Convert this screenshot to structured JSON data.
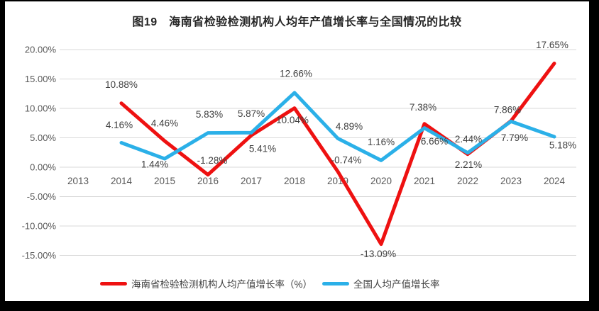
{
  "title": "图19　海南省检验检测机构人均年产值增长率与全国情况的比较",
  "colors": {
    "background_frame": "#000000",
    "panel": "#ffffff",
    "gridline": "#d9d9d9",
    "axis_text": "#595959",
    "data_label_text": "#404040",
    "title_text": "#262626"
  },
  "chart_data": {
    "type": "line",
    "title": "图19　海南省检验检测机构人均年产值增长率与全国情况的比较",
    "categories": [
      "2013",
      "2014",
      "2015",
      "2016",
      "2017",
      "2018",
      "2019",
      "2020",
      "2021",
      "2022",
      "2023",
      "2024"
    ],
    "xlabel": "",
    "ylabel": "",
    "ylim": [
      -15,
      20
    ],
    "yticks": [
      20,
      15,
      10,
      5,
      0,
      -5,
      -10,
      -15
    ],
    "ytick_labels": [
      "20.00%",
      "15.00%",
      "10.00%",
      "5.00%",
      "0.00%",
      "-5.00%",
      "-10.00%",
      "-15.00%"
    ],
    "grid": true,
    "legend_position": "bottom",
    "series": [
      {
        "name": "海南省检验检测机构人均产值增长率（%）",
        "color": "#ee1111",
        "points": [
          {
            "year": "2014",
            "value": 10.88,
            "label": "10.88%",
            "dx": 0,
            "dy": -26
          },
          {
            "year": "2015",
            "value": 4.46,
            "label": "4.46%",
            "dx": 0,
            "dy": -25
          },
          {
            "year": "2016",
            "value": -1.28,
            "label": "-1.28%",
            "dx": 6,
            "dy": -20
          },
          {
            "year": "2017",
            "value": 5.41,
            "label": "5.41%",
            "dx": 16,
            "dy": 19
          },
          {
            "year": "2018",
            "value": 10.04,
            "label": "10.04%",
            "dx": -3,
            "dy": 17
          },
          {
            "year": "2019",
            "value": -0.74,
            "label": "-0.74%",
            "dx": 12,
            "dy": -16
          },
          {
            "year": "2020",
            "value": -13.09,
            "label": "-13.09%",
            "dx": -4,
            "dy": 14
          },
          {
            "year": "2021",
            "value": 7.38,
            "label": "7.38%",
            "dx": -2,
            "dy": -23
          },
          {
            "year": "2022",
            "value": 2.21,
            "label": "2.21%",
            "dx": 1,
            "dy": 15
          },
          {
            "year": "2023",
            "value": 7.86,
            "label": "7.86%",
            "dx": -5,
            "dy": -16
          },
          {
            "year": "2024",
            "value": 17.65,
            "label": "17.65%",
            "dx": -3,
            "dy": -26
          }
        ]
      },
      {
        "name": "全国人均产值增长率",
        "color": "#2bb0e8",
        "points": [
          {
            "year": "2014",
            "value": 4.16,
            "label": "4.16%",
            "dx": -3,
            "dy": -25
          },
          {
            "year": "2015",
            "value": 1.44,
            "label": "1.44%",
            "dx": -14,
            "dy": 8
          },
          {
            "year": "2016",
            "value": 5.83,
            "label": "5.83%",
            "dx": 2,
            "dy": -26
          },
          {
            "year": "2017",
            "value": 5.87,
            "label": "5.87%",
            "dx": 0,
            "dy": -27
          },
          {
            "year": "2018",
            "value": 12.66,
            "label": "12.66%",
            "dx": 2,
            "dy": -27
          },
          {
            "year": "2019",
            "value": 4.89,
            "label": "4.89%",
            "dx": 16,
            "dy": -17
          },
          {
            "year": "2020",
            "value": 1.16,
            "label": "1.16%",
            "dx": 0,
            "dy": -26
          },
          {
            "year": "2021",
            "value": 6.66,
            "label": "6.66%",
            "dx": 14,
            "dy": 19
          },
          {
            "year": "2022",
            "value": 2.44,
            "label": "2.44%",
            "dx": 1,
            "dy": -19
          },
          {
            "year": "2023",
            "value": 7.79,
            "label": "7.79%",
            "dx": 5,
            "dy": 23
          },
          {
            "year": "2024",
            "value": 5.18,
            "label": "5.18%",
            "dx": 12,
            "dy": 12
          }
        ]
      }
    ]
  }
}
